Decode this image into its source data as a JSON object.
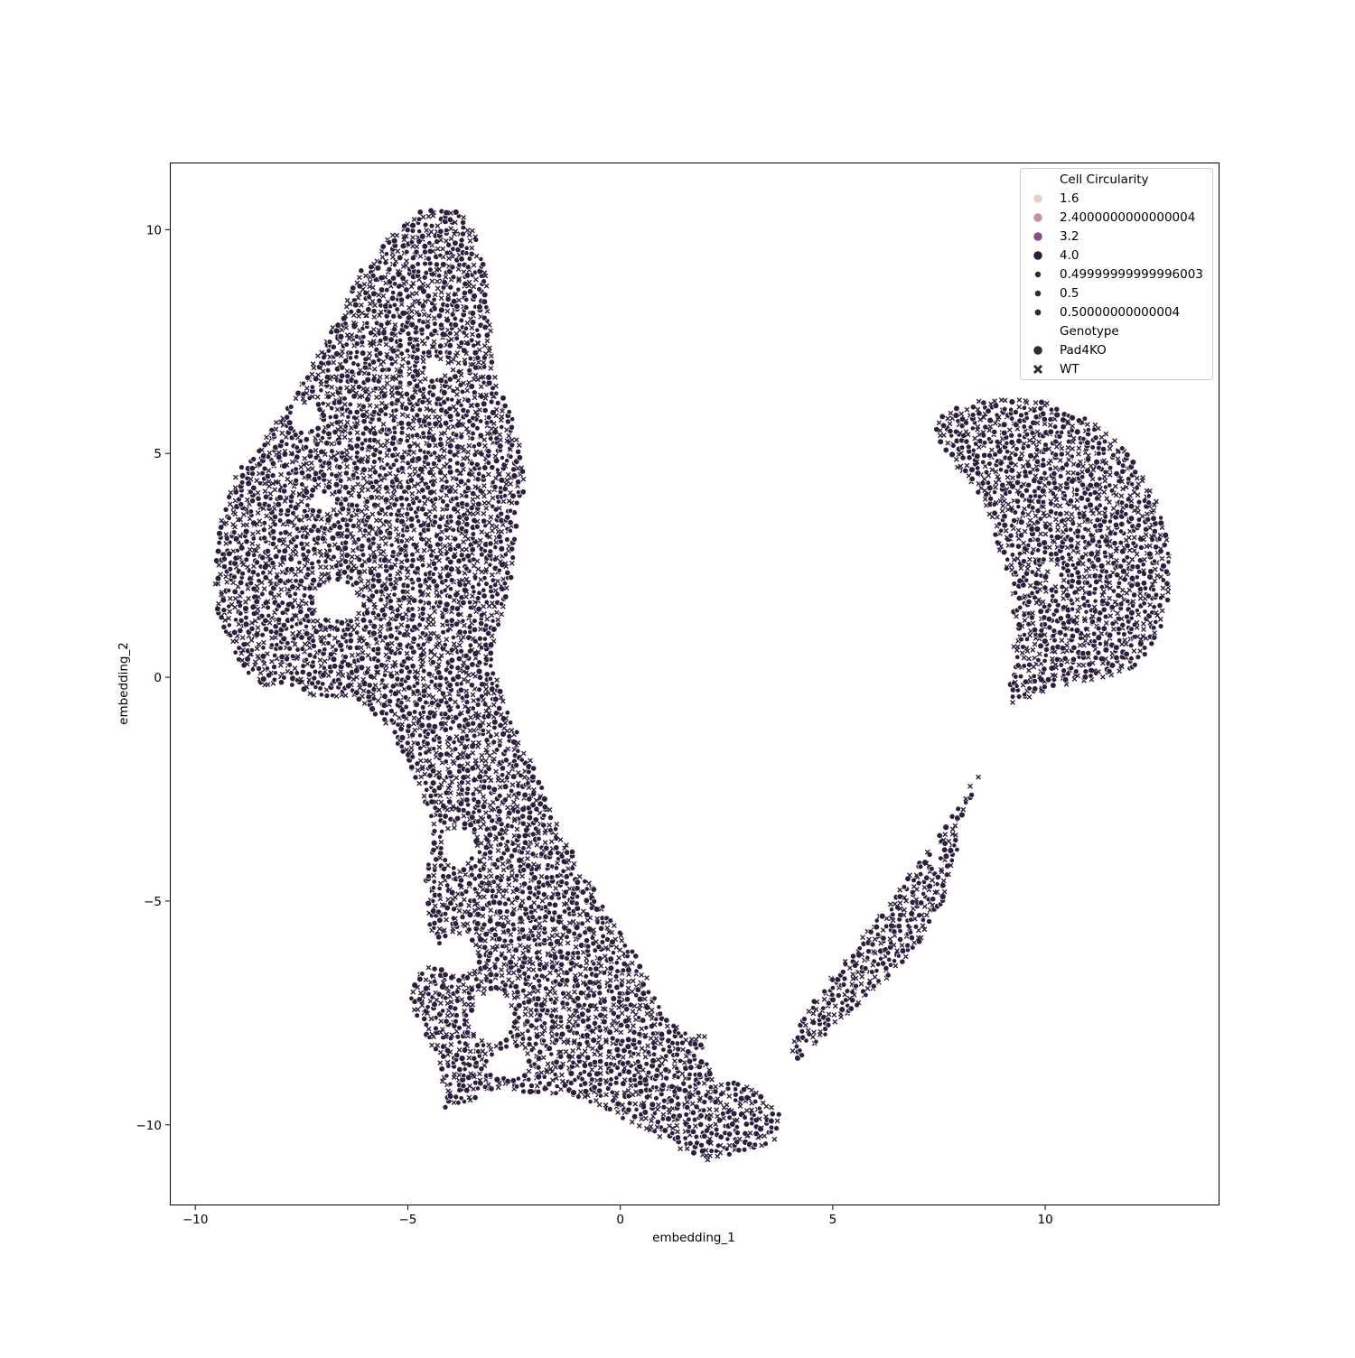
{
  "chart_data": {
    "type": "scatter",
    "title": "",
    "xlabel": "embedding_1",
    "ylabel": "embedding_2",
    "xlim": [
      -10.6,
      14.1
    ],
    "ylim": [
      -11.8,
      11.5
    ],
    "x_ticks": [
      -10,
      -5,
      0,
      5,
      10
    ],
    "x_tick_labels": [
      "−10",
      "−5",
      "0",
      "5",
      "10"
    ],
    "y_ticks": [
      -10,
      -5,
      0,
      5,
      10
    ],
    "y_tick_labels": [
      "−10",
      "−5",
      "0",
      "5",
      "10"
    ],
    "grid": false,
    "legend_position": "top-right",
    "hue": {
      "title": "Cell Circularity",
      "entries": [
        {
          "label": "1.6",
          "color": "#e8cfcb"
        },
        {
          "label": "2.4000000000000004",
          "color": "#c98fa9"
        },
        {
          "label": "3.2",
          "color": "#874f7f"
        },
        {
          "label": "4.0",
          "color": "#2d1e3e"
        }
      ]
    },
    "size": {
      "entries": [
        {
          "label": "0.49999999999996003"
        },
        {
          "label": "0.5"
        },
        {
          "label": "0.50000000000004"
        }
      ]
    },
    "style": {
      "title": "Genotype",
      "entries": [
        {
          "label": "Pad4KO",
          "marker": "circle"
        },
        {
          "label": "WT",
          "marker": "x"
        }
      ]
    },
    "point_color": "#2d1e3e",
    "edge_color": "#ffffff",
    "clusters": [
      {
        "name": "main",
        "outline": [
          [
            -4.7,
            10.4
          ],
          [
            -4.1,
            10.5
          ],
          [
            -3.7,
            10.4
          ],
          [
            -3.4,
            9.9
          ],
          [
            -3.15,
            9.0
          ],
          [
            -3.05,
            7.8
          ],
          [
            -3.0,
            6.8
          ],
          [
            -2.6,
            6.0
          ],
          [
            -2.35,
            5.2
          ],
          [
            -2.25,
            4.3
          ],
          [
            -2.45,
            3.2
          ],
          [
            -2.6,
            2.0
          ],
          [
            -2.9,
            1.0
          ],
          [
            -3.0,
            0.2
          ],
          [
            -2.65,
            -0.7
          ],
          [
            -2.25,
            -1.6
          ],
          [
            -1.9,
            -2.2
          ],
          [
            -1.6,
            -3.0
          ],
          [
            -1.35,
            -3.6
          ],
          [
            -0.8,
            -4.3
          ],
          [
            -0.5,
            -4.9
          ],
          [
            -0.1,
            -5.5
          ],
          [
            0.45,
            -6.3
          ],
          [
            0.8,
            -7.1
          ],
          [
            1.1,
            -7.6
          ],
          [
            1.75,
            -8.0
          ],
          [
            2.1,
            -8.0
          ],
          [
            1.85,
            -8.5
          ],
          [
            2.45,
            -8.9
          ],
          [
            3.1,
            -9.2
          ],
          [
            3.7,
            -9.6
          ],
          [
            3.8,
            -10.0
          ],
          [
            3.6,
            -10.4
          ],
          [
            2.8,
            -10.6
          ],
          [
            2.1,
            -10.8
          ],
          [
            1.3,
            -10.5
          ],
          [
            0.5,
            -10.1
          ],
          [
            -0.4,
            -9.6
          ],
          [
            -1.2,
            -9.3
          ],
          [
            -2.2,
            -9.3
          ],
          [
            -2.8,
            -9.2
          ],
          [
            -3.6,
            -9.5
          ],
          [
            -4.2,
            -9.7
          ],
          [
            -4.2,
            -9.0
          ],
          [
            -4.5,
            -8.2
          ],
          [
            -5.0,
            -7.2
          ],
          [
            -4.7,
            -6.5
          ],
          [
            -4.1,
            -6.4
          ],
          [
            -4.5,
            -5.6
          ],
          [
            -4.6,
            -4.5
          ],
          [
            -4.4,
            -3.7
          ],
          [
            -4.5,
            -3.0
          ],
          [
            -4.9,
            -2.1
          ],
          [
            -5.4,
            -1.2
          ],
          [
            -6.0,
            -0.6
          ],
          [
            -6.5,
            -0.4
          ],
          [
            -7.2,
            -0.5
          ],
          [
            -7.9,
            -0.1
          ],
          [
            -8.4,
            -0.25
          ],
          [
            -9.0,
            0.3
          ],
          [
            -9.5,
            1.5
          ],
          [
            -9.55,
            2.5
          ],
          [
            -9.4,
            3.6
          ],
          [
            -9.0,
            4.6
          ],
          [
            -8.3,
            5.4
          ],
          [
            -7.6,
            6.4
          ],
          [
            -7.0,
            7.4
          ],
          [
            -6.5,
            8.3
          ],
          [
            -6.1,
            9.1
          ],
          [
            -5.5,
            9.8
          ]
        ]
      },
      {
        "name": "right-upper",
        "outline": [
          [
            7.4,
            5.4
          ],
          [
            7.5,
            5.8
          ],
          [
            8.1,
            6.1
          ],
          [
            8.8,
            6.25
          ],
          [
            9.8,
            6.2
          ],
          [
            11.0,
            5.8
          ],
          [
            12.0,
            5.0
          ],
          [
            12.6,
            4.0
          ],
          [
            12.9,
            3.0
          ],
          [
            12.95,
            2.0
          ],
          [
            12.7,
            1.0
          ],
          [
            12.2,
            0.3
          ],
          [
            11.6,
            0.0
          ],
          [
            10.8,
            -0.1
          ],
          [
            10.0,
            -0.3
          ],
          [
            9.2,
            -0.6
          ],
          [
            9.15,
            -0.1
          ],
          [
            9.3,
            1.0
          ],
          [
            9.2,
            2.0
          ],
          [
            8.7,
            3.5
          ],
          [
            8.2,
            4.4
          ],
          [
            7.7,
            4.9
          ]
        ]
      },
      {
        "name": "right-arm",
        "outline": [
          [
            8.5,
            -2.15
          ],
          [
            8.3,
            -2.3
          ],
          [
            7.9,
            -3.0
          ],
          [
            7.3,
            -3.7
          ],
          [
            6.8,
            -4.4
          ],
          [
            6.1,
            -5.3
          ],
          [
            5.4,
            -6.2
          ],
          [
            4.8,
            -6.9
          ],
          [
            4.3,
            -7.6
          ],
          [
            4.0,
            -8.3
          ],
          [
            4.15,
            -8.55
          ],
          [
            4.7,
            -8.1
          ],
          [
            5.5,
            -7.4
          ],
          [
            6.2,
            -6.8
          ],
          [
            7.0,
            -6.0
          ],
          [
            7.6,
            -5.0
          ],
          [
            7.9,
            -4.0
          ],
          [
            8.1,
            -3.0
          ]
        ]
      }
    ],
    "holes": [
      {
        "cx": -6.7,
        "cy": 1.7,
        "rx": 0.55,
        "ry": 0.45
      },
      {
        "cx": -7.4,
        "cy": 5.8,
        "rx": 0.35,
        "ry": 0.3
      },
      {
        "cx": -7.0,
        "cy": 3.9,
        "rx": 0.25,
        "ry": 0.2
      },
      {
        "cx": -3.8,
        "cy": -3.8,
        "rx": 0.35,
        "ry": 0.45
      },
      {
        "cx": -3.8,
        "cy": -6.2,
        "rx": 0.45,
        "ry": 0.45
      },
      {
        "cx": -3.0,
        "cy": -7.6,
        "rx": 0.5,
        "ry": 0.55
      },
      {
        "cx": -2.6,
        "cy": -8.6,
        "rx": 0.45,
        "ry": 0.35
      },
      {
        "cx": 2.6,
        "cy": -8.5,
        "rx": 0.55,
        "ry": 0.55
      },
      {
        "cx": 3.2,
        "cy": -7.7,
        "rx": 0.3,
        "ry": 0.25
      },
      {
        "cx": -0.8,
        "cy": -4.2,
        "rx": 0.2,
        "ry": 0.3
      },
      {
        "cx": 10.2,
        "cy": 2.3,
        "rx": 0.15,
        "ry": 0.2
      },
      {
        "cx": 7.4,
        "cy": -3.9,
        "rx": 0.12,
        "ry": 0.35
      },
      {
        "cx": -4.3,
        "cy": 6.9,
        "rx": 0.25,
        "ry": 0.2
      }
    ]
  }
}
